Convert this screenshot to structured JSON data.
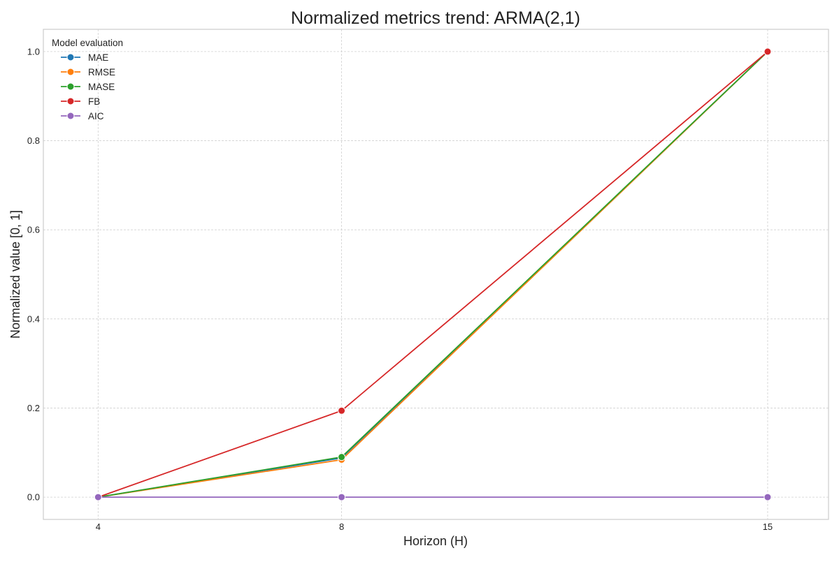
{
  "chart_data": {
    "type": "line",
    "title": "Normalized metrics trend: ARMA(2,1)",
    "xlabel": "Horizon (H)",
    "ylabel": "Normalized value [0, 1]",
    "x": [
      4,
      8,
      15
    ],
    "x_tick_labels": [
      "4",
      "8",
      "15"
    ],
    "y_ticks": [
      0.0,
      0.2,
      0.4,
      0.6,
      0.8,
      1.0
    ],
    "y_tick_labels": [
      "0.0",
      "0.2",
      "0.4",
      "0.6",
      "0.8",
      "1.0"
    ],
    "xlim": [
      3.1,
      16.0
    ],
    "ylim": [
      -0.05,
      1.05
    ],
    "grid": true,
    "legend_title": "Model evaluation",
    "legend_position": "top-left",
    "series": [
      {
        "name": "MAE",
        "color": "#1f77b4",
        "values": [
          0.0,
          0.088,
          1.0
        ]
      },
      {
        "name": "RMSE",
        "color": "#ff7f0e",
        "values": [
          0.0,
          0.084,
          1.0
        ]
      },
      {
        "name": "MASE",
        "color": "#2ca02c",
        "values": [
          0.0,
          0.09,
          1.0
        ]
      },
      {
        "name": "FB",
        "color": "#d62728",
        "values": [
          0.0,
          0.194,
          1.0
        ]
      },
      {
        "name": "AIC",
        "color": "#9467bd",
        "values": [
          0.0,
          0.0,
          0.0
        ]
      }
    ]
  }
}
